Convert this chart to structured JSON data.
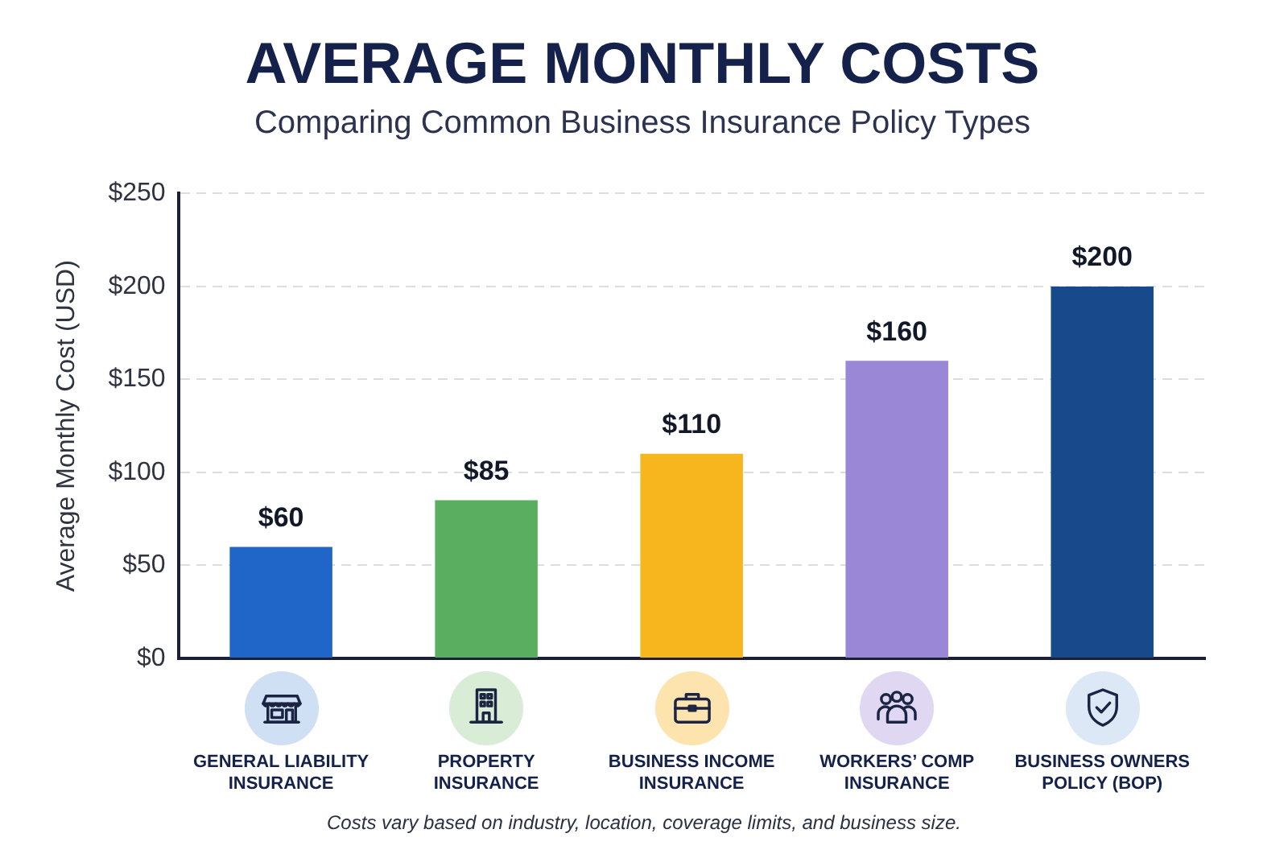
{
  "chart_data": {
    "type": "bar",
    "title": "AVERAGE MONTHLY COSTS",
    "subtitle": "Comparing Common Business Insurance Policy Types",
    "ylabel": "Average Monthly Cost (USD)",
    "categories": [
      "GENERAL LIABILITY INSURANCE",
      "PROPERTY INSURANCE",
      "BUSINESS INCOME INSURANCE",
      "WORKERS’ COMP INSURANCE",
      "BUSINESS OWNERS POLICY (BOP)"
    ],
    "values": [
      60,
      85,
      110,
      160,
      200
    ],
    "colors": [
      "#2066c8",
      "#5aae5f",
      "#f8b61e",
      "#9a88d6",
      "#17498b"
    ],
    "value_labels": [
      "$60",
      "$85",
      "$110",
      "$160",
      "$200"
    ],
    "ylim": [
      0,
      250
    ],
    "yticks": [
      {
        "value": 0,
        "label": "$0"
      },
      {
        "value": 50,
        "label": "$50"
      },
      {
        "value": 100,
        "label": "$100"
      },
      {
        "value": 150,
        "label": "$150"
      },
      {
        "value": 200,
        "label": "$200"
      },
      {
        "value": 250,
        "label": "$250"
      }
    ],
    "grid": "y",
    "annotations": [
      "Costs vary based on industry, location, coverage limits, and business size."
    ]
  }
}
